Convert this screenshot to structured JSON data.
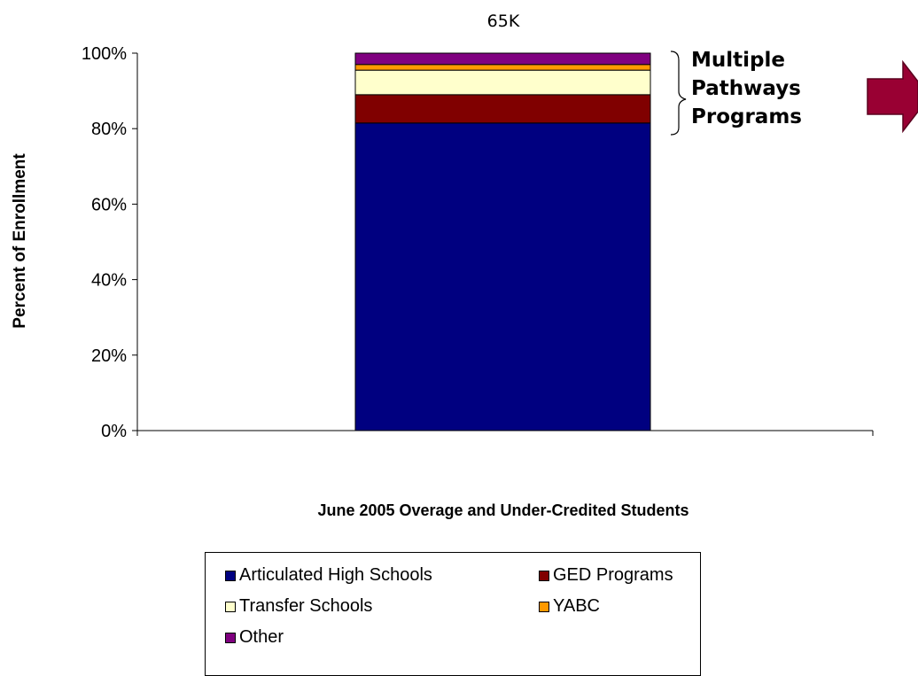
{
  "chart_data": {
    "type": "bar",
    "stacked": true,
    "percent": true,
    "categories": [
      ""
    ],
    "series": [
      {
        "name": "Articulated High Schools",
        "values": [
          81.5
        ],
        "color": "#000080"
      },
      {
        "name": "GED Programs",
        "values": [
          7.5
        ],
        "color": "#800000"
      },
      {
        "name": "Transfer Schools",
        "values": [
          6.5
        ],
        "color": "#ffffcc"
      },
      {
        "name": "YABC",
        "values": [
          1.5
        ],
        "color": "#ff9900"
      },
      {
        "name": "Other",
        "values": [
          3.0
        ],
        "color": "#800080"
      }
    ],
    "total_label": "65K",
    "xlabel": "June 2005 Overage and Under-Credited Students",
    "ylabel": "Percent of Enrollment",
    "yticks": [
      "0%",
      "20%",
      "40%",
      "60%",
      "80%",
      "100%"
    ],
    "ylim": [
      0,
      100
    ],
    "legend_position": "bottom",
    "annotation": {
      "lines": [
        "Multiple",
        "Pathways",
        "Programs"
      ],
      "arrow_color": "#990033"
    }
  }
}
